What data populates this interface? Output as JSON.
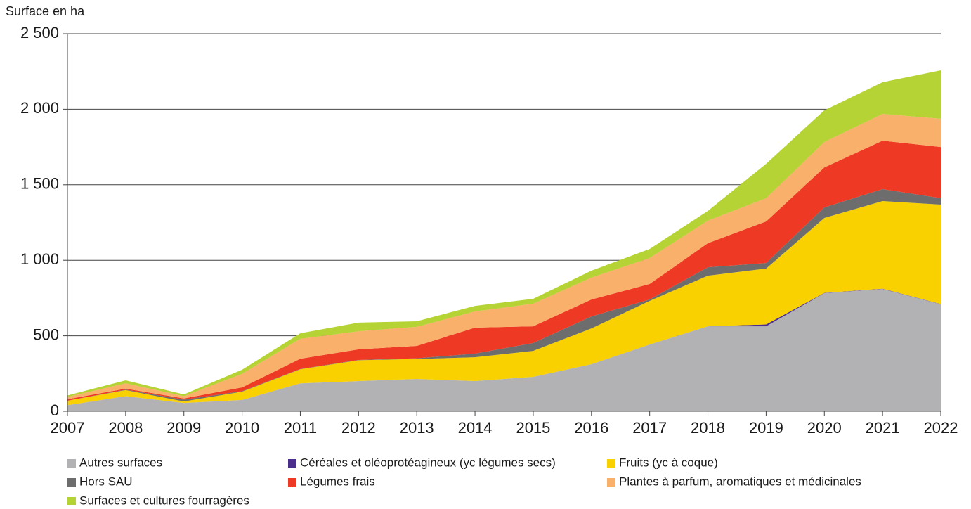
{
  "chart_data": {
    "type": "stacked_area",
    "y_label": "Surface en ha",
    "x": [
      2007,
      2008,
      2009,
      2010,
      2011,
      2012,
      2013,
      2014,
      2015,
      2016,
      2017,
      2018,
      2019,
      2020,
      2021,
      2022
    ],
    "xlim": [
      2007,
      2022
    ],
    "xticks": [
      2007,
      2008,
      2009,
      2010,
      2011,
      2012,
      2013,
      2014,
      2015,
      2016,
      2017,
      2018,
      2019,
      2020,
      2021,
      2022
    ],
    "ylim": [
      0,
      2500
    ],
    "yticks": [
      0,
      500,
      {
        "value": 1000,
        "label": "1 000"
      },
      {
        "value": 1500,
        "label": "1 500"
      },
      {
        "value": 2000,
        "label": "2 000"
      },
      {
        "value": 2500,
        "label": "2 500"
      }
    ],
    "grid": true,
    "series": [
      {
        "name": "Autres surfaces",
        "color": "#b2b2b4",
        "values": [
          40,
          100,
          55,
          75,
          185,
          200,
          214,
          200,
          228,
          312,
          442,
          563,
          563,
          782,
          810,
          708
        ]
      },
      {
        "name": "Céréales et oléoprotéagineux (yc légumes secs)",
        "color": "#4b2d8c",
        "values": [
          0,
          0,
          0,
          0,
          0,
          0,
          0,
          0,
          0,
          0,
          0,
          0,
          12,
          2,
          2,
          2
        ]
      },
      {
        "name": "Fruits (yc à coque)",
        "color": "#f9d100",
        "values": [
          30,
          40,
          10,
          55,
          93,
          138,
          132,
          158,
          172,
          237,
          289,
          335,
          370,
          496,
          580,
          659
        ]
      },
      {
        "name": "Hors SAU",
        "color": "#6d6d6d",
        "values": [
          0,
          3,
          12,
          3,
          2,
          2,
          5,
          24,
          52,
          79,
          9,
          56,
          37,
          70,
          79,
          42
        ]
      },
      {
        "name": "Légumes frais",
        "color": "#ee3a24",
        "values": [
          10,
          7,
          8,
          25,
          68,
          70,
          82,
          172,
          111,
          112,
          103,
          159,
          275,
          265,
          321,
          339
        ]
      },
      {
        "name": "Plantes à parfum, aromatiques et médicinales",
        "color": "#f9b06a",
        "values": [
          15,
          35,
          15,
          90,
          132,
          120,
          126,
          107,
          149,
          145,
          172,
          149,
          154,
          168,
          177,
          187
        ]
      },
      {
        "name": "Surfaces et cultures fourragères",
        "color": "#b5d334",
        "values": [
          10,
          20,
          12,
          27,
          37,
          57,
          37,
          37,
          33,
          46,
          60,
          65,
          228,
          210,
          210,
          321
        ]
      }
    ]
  }
}
